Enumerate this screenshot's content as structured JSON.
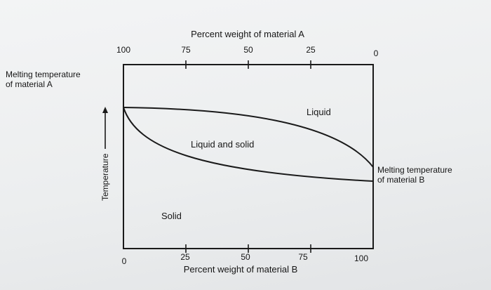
{
  "diagram": {
    "top_axis": {
      "title": "Percent weight of material A",
      "ticks": [
        "100",
        "75",
        "50",
        "25",
        "0"
      ]
    },
    "bottom_axis": {
      "title": "Percent weight of material B",
      "ticks": [
        "0",
        "25",
        "50",
        "75",
        "100"
      ]
    },
    "left_axis": {
      "title": "Temperature"
    },
    "left_annotation": {
      "line1": "Melting temperature",
      "line2": "of material A"
    },
    "right_annotation": {
      "line1": "Melting temperature",
      "line2": "of material B"
    },
    "regions": {
      "upper": "Liquid",
      "middle": "Liquid and solid",
      "lower": "Solid"
    },
    "line_color": "#1a1a1a"
  }
}
